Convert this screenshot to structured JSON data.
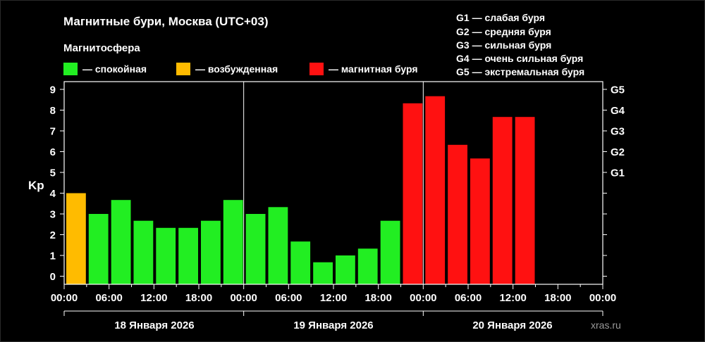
{
  "header": {
    "title": "Магнитные бури, Москва (UTC+03)",
    "subtitle": "Магнитосфера",
    "legend": [
      {
        "label": "— спокойная",
        "color": "#22ee22"
      },
      {
        "label": "— возбужденная",
        "color": "#ffbb00"
      },
      {
        "label": "— магнитная буря",
        "color": "#ff1111"
      }
    ],
    "scale_legend": [
      "G1 — слабая буря",
      "G2 — средняя буря",
      "G3 — сильная буря",
      "G4 — очень сильная буря",
      "G5 — экстремальная буря"
    ]
  },
  "chart_data": {
    "type": "bar",
    "ylabel": "Kp",
    "ylim": [
      0,
      9
    ],
    "y_ticks": [
      "0",
      "1",
      "2",
      "3",
      "4",
      "5",
      "6",
      "7",
      "8",
      "9"
    ],
    "right_ticks": [
      {
        "label": "G1",
        "value": 5
      },
      {
        "label": "G2",
        "value": 6
      },
      {
        "label": "G3",
        "value": 7
      },
      {
        "label": "G4",
        "value": 8
      },
      {
        "label": "G5",
        "value": 9
      }
    ],
    "x_tick_labels": [
      "00:00",
      "06:00",
      "12:00",
      "18:00",
      "00:00",
      "06:00",
      "12:00",
      "18:00",
      "00:00",
      "06:00",
      "12:00",
      "18:00",
      "00:00"
    ],
    "days": [
      "18 Января 2026",
      "19 Января 2026",
      "20 Января 2026"
    ],
    "bar_hours": 3,
    "values": [
      4.0,
      3.0,
      3.67,
      2.67,
      2.33,
      2.33,
      2.67,
      3.67,
      3.0,
      3.33,
      1.67,
      0.67,
      1.0,
      1.33,
      2.67,
      8.33,
      8.67,
      6.33,
      5.67,
      7.67,
      7.67
    ],
    "colors": {
      "quiet": "#22ee22",
      "active": "#ffbb00",
      "storm": "#ff1111"
    },
    "levels": [
      "active",
      "quiet",
      "quiet",
      "quiet",
      "quiet",
      "quiet",
      "quiet",
      "quiet",
      "quiet",
      "quiet",
      "quiet",
      "quiet",
      "quiet",
      "quiet",
      "quiet",
      "storm",
      "storm",
      "storm",
      "storm",
      "storm",
      "storm"
    ]
  },
  "footer": {
    "site": "xras.ru"
  }
}
